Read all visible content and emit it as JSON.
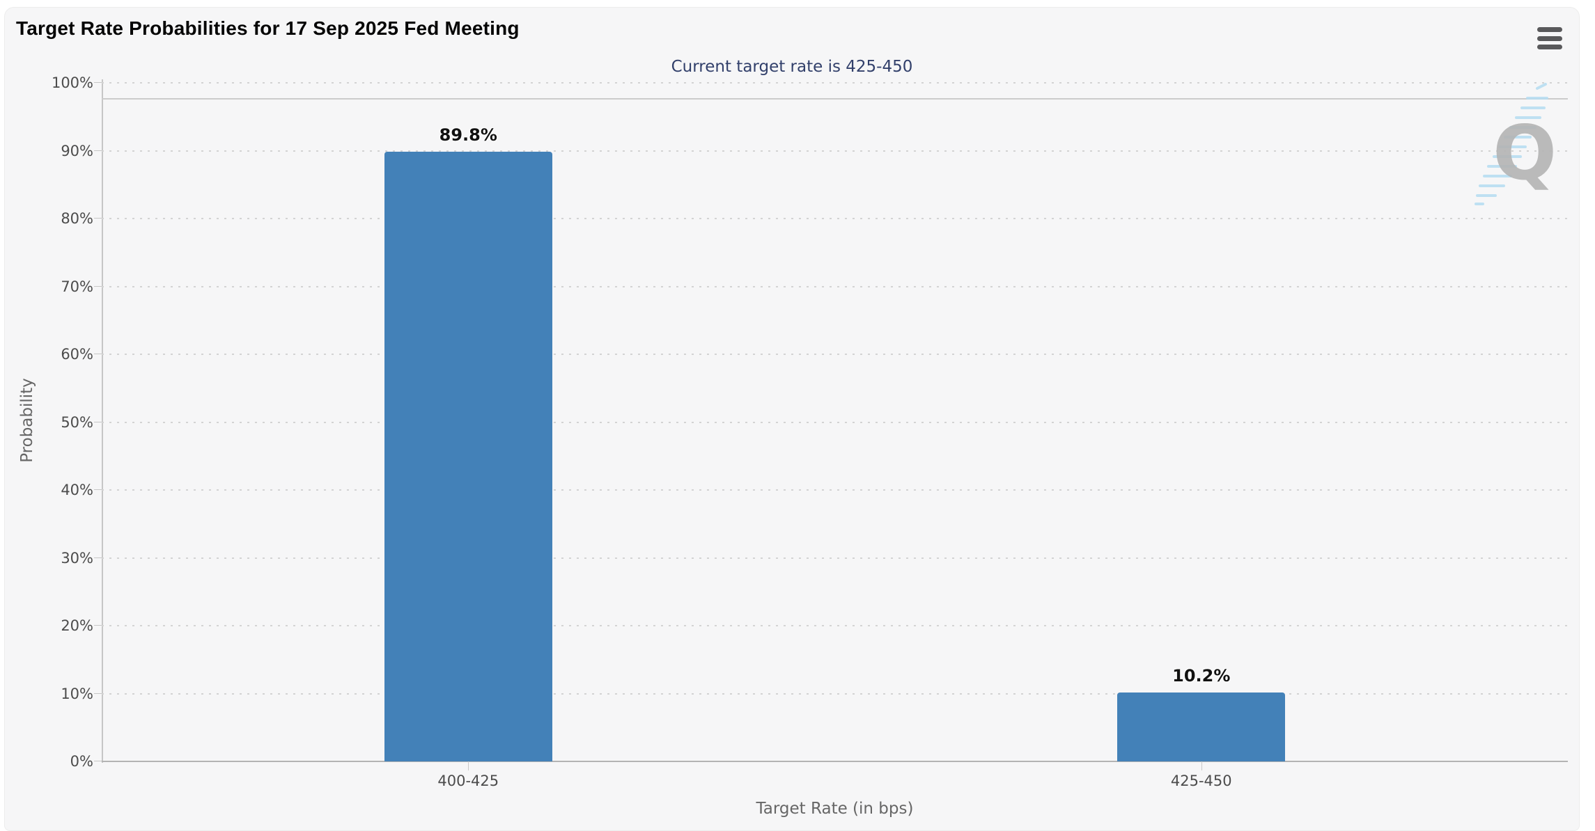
{
  "header": {
    "title": "Target Rate Probabilities for 17 Sep 2025 Fed Meeting",
    "menu_icon": "hamburger-icon"
  },
  "chart_data": {
    "type": "bar",
    "title": "Target Rate Probabilities for 17 Sep 2025 Fed Meeting",
    "subtitle": "Current target rate is 425-450",
    "categories": [
      "400-425",
      "425-450"
    ],
    "values": [
      89.8,
      10.2
    ],
    "value_labels": [
      "89.8%",
      "10.2%"
    ],
    "xlabel": "Target Rate (in bps)",
    "ylabel": "Probability",
    "ylim": [
      0,
      100
    ],
    "ytick_step": 10,
    "yticks": [
      "0%",
      "10%",
      "20%",
      "30%",
      "40%",
      "50%",
      "60%",
      "70%",
      "80%",
      "90%",
      "100%"
    ],
    "grid": "dotted horizontal, on",
    "legend": "none",
    "reference_line_value": 97.5,
    "bar_color": "#4381b8",
    "watermark_letter": "Q"
  },
  "colors": {
    "card_background": "#f6f6f7",
    "page_background": "#ffffff",
    "bar": "#4381b8",
    "subtitle_text": "#32406b",
    "axis_label_text": "#4c4c4c",
    "axis_title_text": "#666666",
    "gridline": "#d3d3d3",
    "baseline": "#b3b3b3",
    "watermark_gray": "#b4b4b4",
    "watermark_blue": "#b5ddf2"
  }
}
